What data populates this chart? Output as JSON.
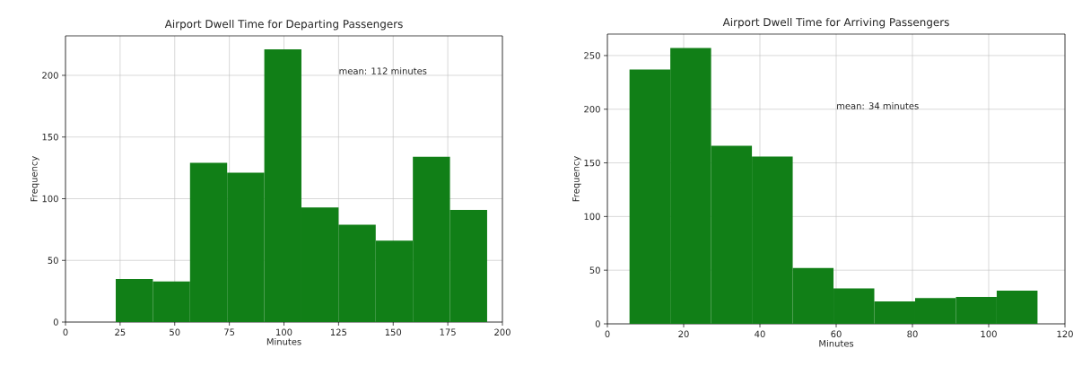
{
  "chart_data": [
    {
      "type": "histogram",
      "title": "Airport Dwell Time for Departing Passengers",
      "xlabel": "Minutes",
      "ylabel": "Frequency",
      "color": "#117f17",
      "bins": [
        23,
        40,
        57,
        74,
        91,
        108,
        125,
        142,
        159,
        176,
        193
      ],
      "values": [
        35,
        33,
        129,
        121,
        221,
        93,
        79,
        66,
        134,
        91
      ],
      "xlim": [
        0,
        200
      ],
      "ylim": [
        0,
        232
      ],
      "xticks": [
        0,
        25,
        50,
        75,
        100,
        125,
        150,
        175,
        200
      ],
      "yticks": [
        0,
        50,
        100,
        150,
        200
      ],
      "grid": true,
      "annotations": [
        "mean: 112 minutes"
      ]
    },
    {
      "type": "histogram",
      "title": "Airport Dwell Time for Arriving Passengers",
      "xlabel": "Minutes",
      "ylabel": "Frequency",
      "color": "#117f17",
      "bins": [
        5.8,
        16.5,
        27.2,
        37.9,
        48.6,
        59.3,
        70,
        80.7,
        91.4,
        102.1,
        112.8
      ],
      "values": [
        237,
        257,
        166,
        156,
        52,
        33,
        21,
        24,
        25,
        31
      ],
      "xlim": [
        0,
        120
      ],
      "ylim": [
        0,
        270
      ],
      "xticks": [
        0,
        20,
        40,
        60,
        80,
        100,
        120
      ],
      "yticks": [
        0,
        50,
        100,
        150,
        200,
        250
      ],
      "grid": true,
      "annotations": [
        "mean: 34 minutes"
      ]
    }
  ]
}
